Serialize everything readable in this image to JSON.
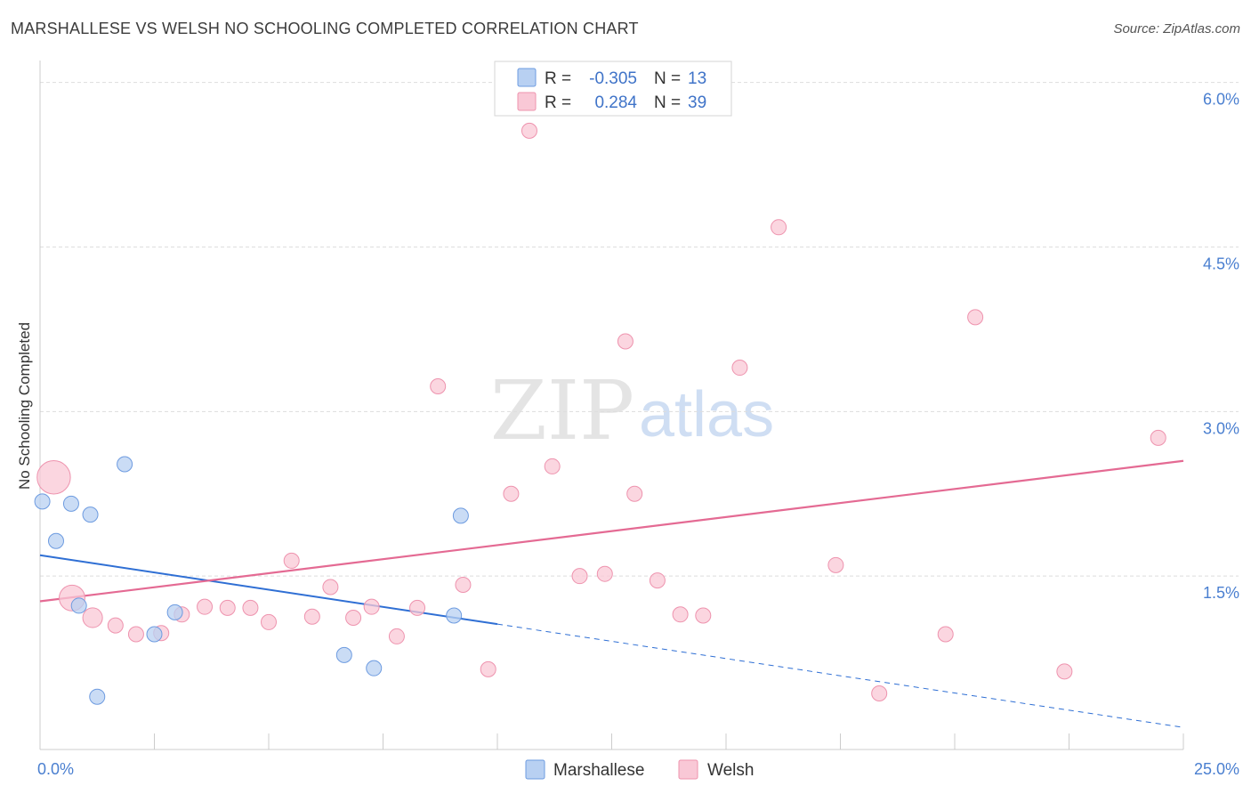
{
  "title": "MARSHALLESE VS WELSH NO SCHOOLING COMPLETED CORRELATION CHART",
  "source": "Source: ZipAtlas.com",
  "watermark": {
    "zip": "ZIP",
    "atlas": "atlas"
  },
  "colors": {
    "marshallese_fill": "#b8d0f2",
    "marshallese_stroke": "#6d9be0",
    "marshallese_line": "#2f6fd4",
    "welsh_fill": "#f9c8d6",
    "welsh_stroke": "#ee93ae",
    "welsh_line": "#e46a93",
    "grid": "#dddddd",
    "tick_text": "#4a7fd0"
  },
  "legend": {
    "rows": [
      {
        "r_label": "R =",
        "r_value": "-0.305",
        "n_label": "N =",
        "n_value": "13"
      },
      {
        "r_label": "R =",
        "r_value": "0.284",
        "n_label": "N =",
        "n_value": "39"
      }
    ]
  },
  "chart_data": {
    "type": "scatter",
    "title": "MARSHALLESE VS WELSH NO SCHOOLING COMPLETED CORRELATION CHART",
    "xlabel": "",
    "ylabel": "No Schooling Completed",
    "xlim": [
      0,
      25
    ],
    "ylim": [
      0,
      6.2
    ],
    "x_tick_labels": [
      {
        "value": 0,
        "label": "0.0%"
      },
      {
        "value": 25,
        "label": "25.0%"
      }
    ],
    "y_tick_labels": [
      {
        "value": 1.5,
        "label": "1.5%"
      },
      {
        "value": 3.0,
        "label": "3.0%"
      },
      {
        "value": 4.5,
        "label": "4.5%"
      },
      {
        "value": 6.0,
        "label": "6.0%"
      }
    ],
    "grid": true,
    "series": [
      {
        "name": "Marshallese",
        "points": [
          {
            "x": 0.05,
            "y": 2.18,
            "size": 1
          },
          {
            "x": 0.35,
            "y": 1.82,
            "size": 1
          },
          {
            "x": 0.68,
            "y": 2.16,
            "size": 1
          },
          {
            "x": 0.85,
            "y": 1.23,
            "size": 1
          },
          {
            "x": 1.1,
            "y": 2.06,
            "size": 1
          },
          {
            "x": 1.25,
            "y": 0.4,
            "size": 1
          },
          {
            "x": 1.85,
            "y": 2.52,
            "size": 1
          },
          {
            "x": 2.5,
            "y": 0.97,
            "size": 1
          },
          {
            "x": 2.95,
            "y": 1.17,
            "size": 1
          },
          {
            "x": 6.65,
            "y": 0.78,
            "size": 1
          },
          {
            "x": 7.3,
            "y": 0.66,
            "size": 1
          },
          {
            "x": 9.05,
            "y": 1.14,
            "size": 1
          },
          {
            "x": 9.2,
            "y": 2.05,
            "size": 1
          }
        ],
        "trend": {
          "x_start": 0,
          "y_start": 1.69,
          "x_solid_end": 10,
          "x_end": 25,
          "y_end": 0.12
        }
      },
      {
        "name": "Welsh",
        "points": [
          {
            "x": 0.3,
            "y": 2.4,
            "size": 2.2
          },
          {
            "x": 0.7,
            "y": 1.3,
            "size": 1.7
          },
          {
            "x": 1.15,
            "y": 1.12,
            "size": 1.3
          },
          {
            "x": 1.65,
            "y": 1.05,
            "size": 1
          },
          {
            "x": 2.1,
            "y": 0.97,
            "size": 1
          },
          {
            "x": 2.65,
            "y": 0.98,
            "size": 1
          },
          {
            "x": 3.1,
            "y": 1.15,
            "size": 1
          },
          {
            "x": 3.6,
            "y": 1.22,
            "size": 1
          },
          {
            "x": 4.1,
            "y": 1.21,
            "size": 1
          },
          {
            "x": 4.6,
            "y": 1.21,
            "size": 1
          },
          {
            "x": 5.0,
            "y": 1.08,
            "size": 1
          },
          {
            "x": 5.5,
            "y": 1.64,
            "size": 1
          },
          {
            "x": 5.95,
            "y": 1.13,
            "size": 1
          },
          {
            "x": 6.35,
            "y": 1.4,
            "size": 1
          },
          {
            "x": 6.85,
            "y": 1.12,
            "size": 1
          },
          {
            "x": 7.25,
            "y": 1.22,
            "size": 1
          },
          {
            "x": 7.8,
            "y": 0.95,
            "size": 1
          },
          {
            "x": 8.25,
            "y": 1.21,
            "size": 1
          },
          {
            "x": 8.7,
            "y": 3.23,
            "size": 1
          },
          {
            "x": 9.25,
            "y": 1.42,
            "size": 1
          },
          {
            "x": 9.8,
            "y": 0.65,
            "size": 1
          },
          {
            "x": 10.3,
            "y": 2.25,
            "size": 1
          },
          {
            "x": 10.7,
            "y": 5.56,
            "size": 1
          },
          {
            "x": 11.2,
            "y": 2.5,
            "size": 1
          },
          {
            "x": 11.8,
            "y": 1.5,
            "size": 1
          },
          {
            "x": 12.35,
            "y": 1.52,
            "size": 1
          },
          {
            "x": 12.8,
            "y": 3.64,
            "size": 1
          },
          {
            "x": 13.0,
            "y": 2.25,
            "size": 1
          },
          {
            "x": 13.5,
            "y": 1.46,
            "size": 1
          },
          {
            "x": 14.0,
            "y": 1.15,
            "size": 1
          },
          {
            "x": 14.5,
            "y": 1.14,
            "size": 1
          },
          {
            "x": 15.3,
            "y": 3.4,
            "size": 1
          },
          {
            "x": 16.15,
            "y": 4.68,
            "size": 1
          },
          {
            "x": 17.4,
            "y": 1.6,
            "size": 1
          },
          {
            "x": 18.35,
            "y": 0.43,
            "size": 1
          },
          {
            "x": 19.8,
            "y": 0.97,
            "size": 1
          },
          {
            "x": 20.45,
            "y": 3.86,
            "size": 1
          },
          {
            "x": 22.4,
            "y": 0.63,
            "size": 1
          },
          {
            "x": 24.45,
            "y": 2.76,
            "size": 1
          }
        ],
        "trend": {
          "x_start": 0,
          "y_start": 1.27,
          "x_end": 25,
          "y_end": 2.55
        }
      }
    ],
    "legend_position": "top-center"
  }
}
